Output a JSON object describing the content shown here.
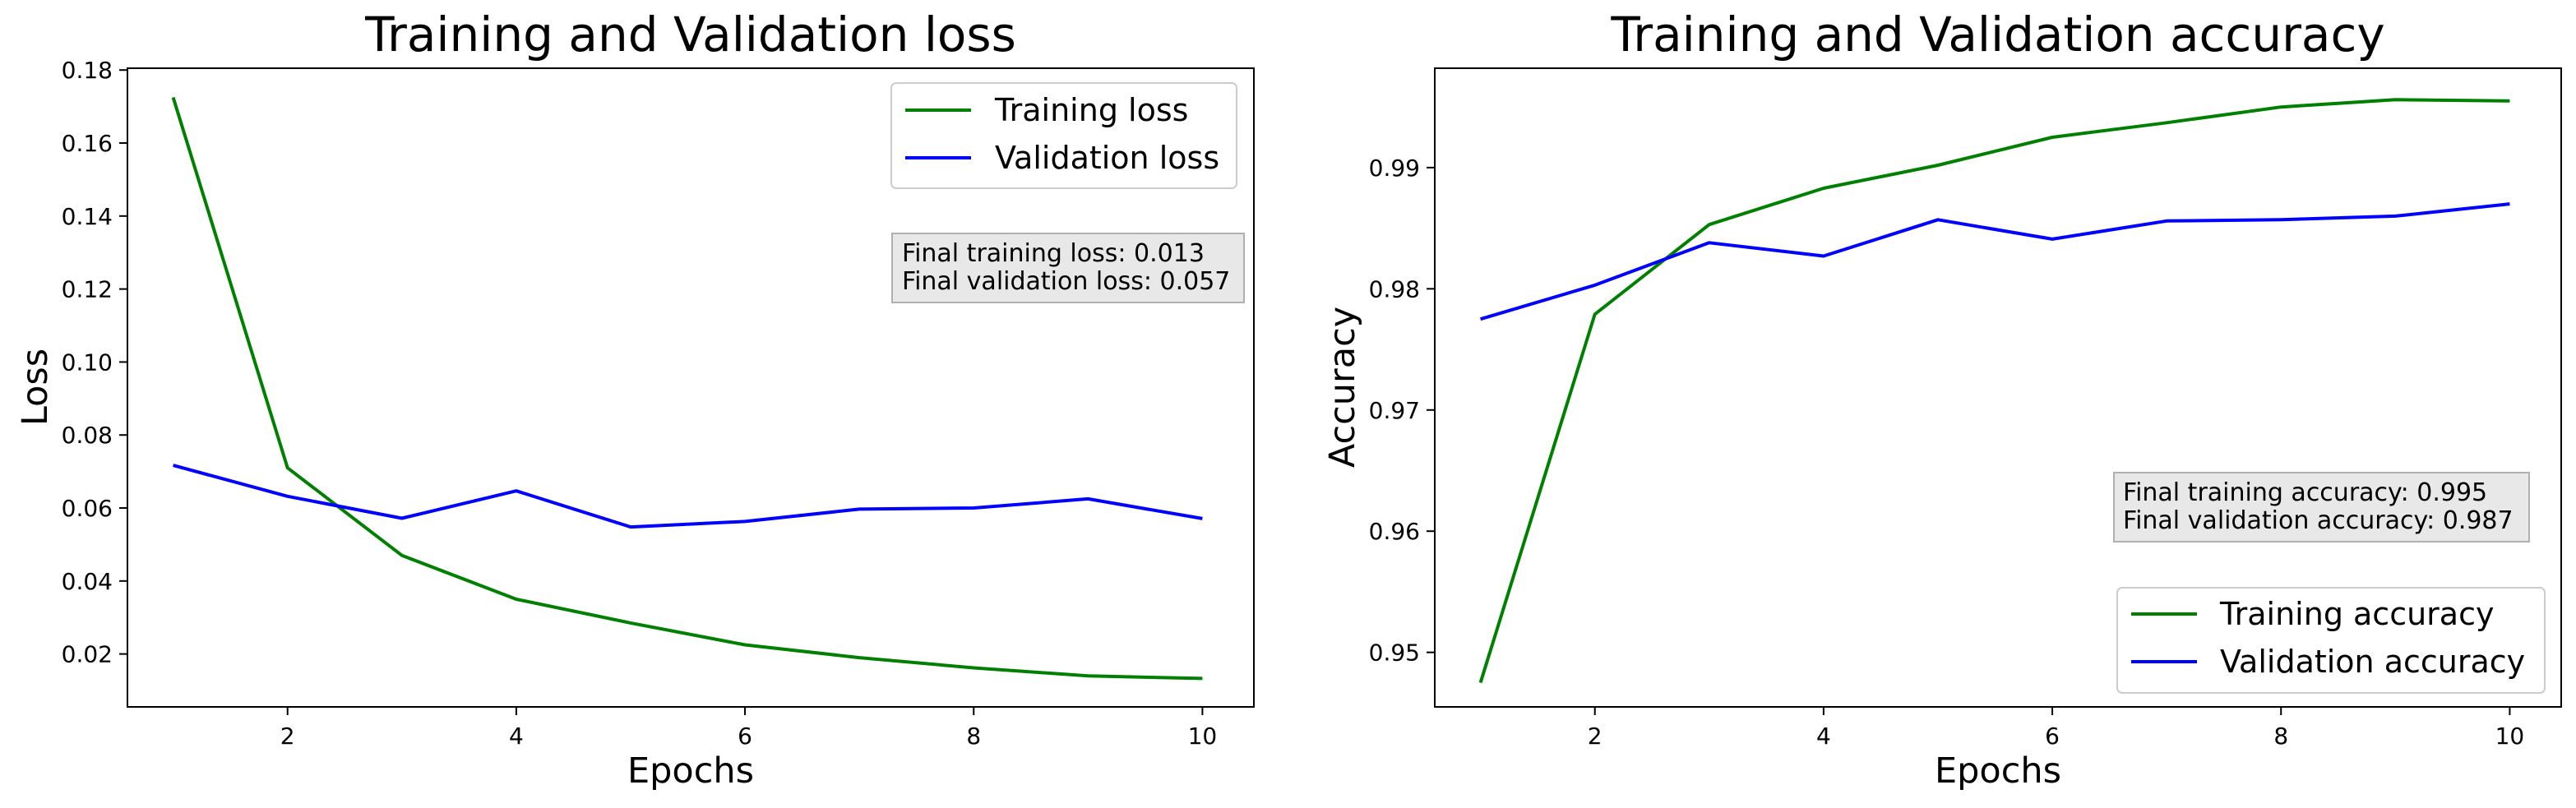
{
  "colors": {
    "training": "#008000",
    "validation": "#0000ff",
    "note_bg": "#e8e8e8"
  },
  "chart_data": [
    {
      "type": "line",
      "title": "Training and Validation loss",
      "xlabel": "Epochs",
      "ylabel": "Loss",
      "xlim": [
        0.6,
        10.45
      ],
      "ylim": [
        0.0055,
        0.1805
      ],
      "xticks": [
        2,
        4,
        6,
        8,
        10
      ],
      "yticks": [
        0.02,
        0.04,
        0.06,
        0.08,
        0.1,
        0.12,
        0.14,
        0.16,
        0.18
      ],
      "ytick_labels": [
        "0.02",
        "0.04",
        "0.06",
        "0.08",
        "0.10",
        "0.12",
        "0.14",
        "0.16",
        "0.18"
      ],
      "grid": false,
      "legend_position": "top-right",
      "x": [
        1,
        2,
        3,
        4,
        5,
        6,
        7,
        8,
        9,
        10
      ],
      "series": [
        {
          "name": "Training loss",
          "color": "training",
          "values": [
            0.1725,
            0.071,
            0.047,
            0.035,
            0.0285,
            0.0225,
            0.019,
            0.0162,
            0.014,
            0.0133
          ]
        },
        {
          "name": "Validation loss",
          "color": "validation",
          "values": [
            0.0717,
            0.0632,
            0.0572,
            0.0647,
            0.0548,
            0.0563,
            0.0597,
            0.06,
            0.0625,
            0.0571
          ]
        }
      ],
      "annotation": [
        "Final training loss: 0.013",
        "Final validation loss: 0.057"
      ]
    },
    {
      "type": "line",
      "title": "Training and Validation accuracy",
      "xlabel": "Epochs",
      "ylabel": "Accuracy",
      "xlim": [
        0.6,
        10.45
      ],
      "ylim": [
        0.9455,
        0.9982
      ],
      "xticks": [
        2,
        4,
        6,
        8,
        10
      ],
      "yticks": [
        0.95,
        0.96,
        0.97,
        0.98,
        0.99
      ],
      "ytick_labels": [
        "0.95",
        "0.96",
        "0.97",
        "0.98",
        "0.99"
      ],
      "grid": false,
      "legend_position": "bottom-right",
      "x": [
        1,
        2,
        3,
        4,
        5,
        6,
        7,
        8,
        9,
        10
      ],
      "series": [
        {
          "name": "Training accuracy",
          "color": "training",
          "values": [
            0.9475,
            0.9779,
            0.9853,
            0.9883,
            0.9902,
            0.9925,
            0.9937,
            0.995,
            0.9956,
            0.9955
          ]
        },
        {
          "name": "Validation accuracy",
          "color": "validation",
          "values": [
            0.9775,
            0.9803,
            0.9838,
            0.9827,
            0.9857,
            0.9841,
            0.9856,
            0.9857,
            0.986,
            0.987
          ]
        }
      ],
      "annotation": [
        "Final training accuracy: 0.995",
        "Final validation accuracy: 0.987"
      ]
    }
  ]
}
